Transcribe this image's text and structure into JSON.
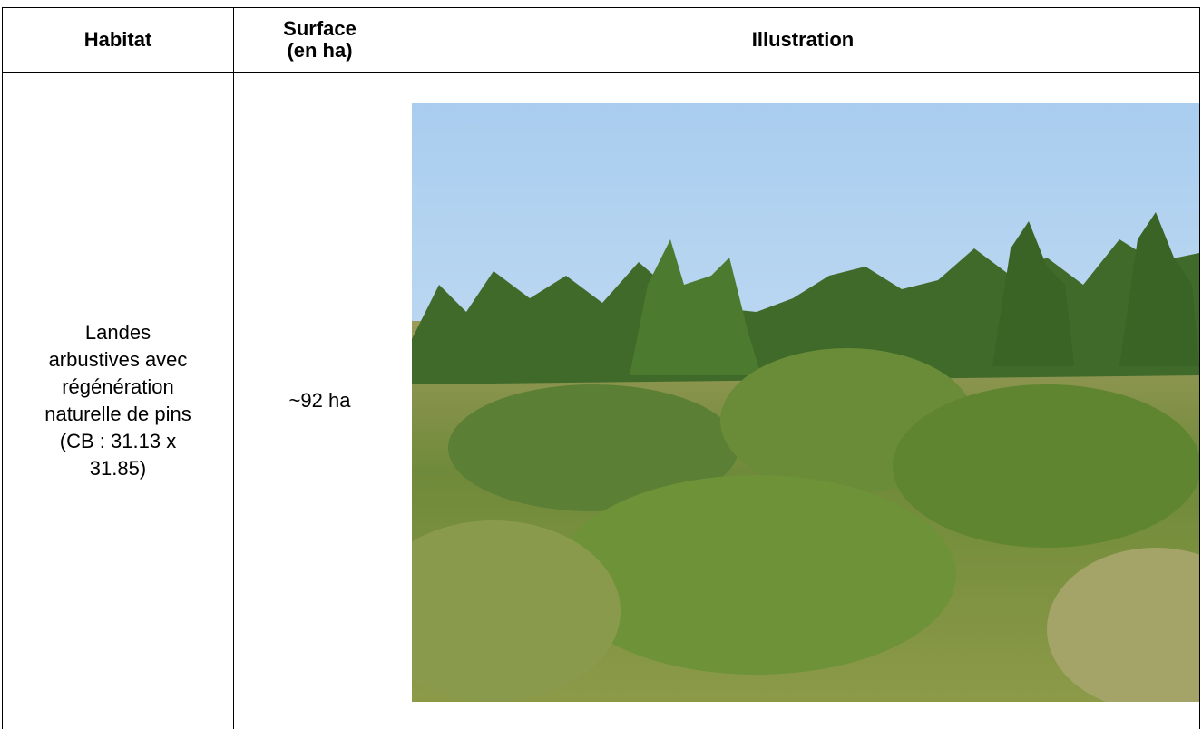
{
  "table": {
    "header": [
      "Habitat",
      "Surface\n(en ha)",
      "Illustration"
    ],
    "rows": [
      [
        "Landes\narbustives avec\nrégénération\nnaturelle de pins\n(CB : 31.13 x\n31.85)",
        "~92 ha"
      ]
    ]
  }
}
